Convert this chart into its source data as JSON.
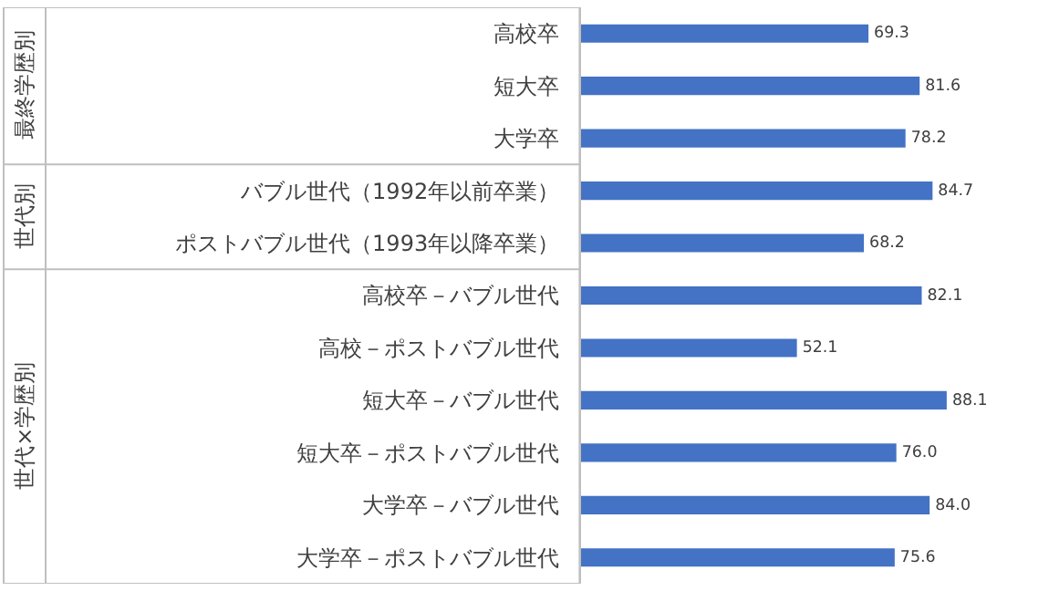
{
  "chart_data": {
    "type": "bar",
    "orientation": "horizontal",
    "categories": [
      "高校卒",
      "短大卒",
      "大学卒",
      "バブル世代（1992年以前卒業）",
      "ポストバブル世代（1993年以降卒業）",
      "高校卒－バブル世代",
      "高校－ポストバブル世代",
      "短大卒－バブル世代",
      "短大卒－ポストバブル世代",
      "大学卒－バブル世代",
      "大学卒－ポストバブル世代"
    ],
    "values": [
      69.3,
      81.6,
      78.2,
      84.7,
      68.2,
      82.1,
      52.1,
      88.1,
      76.0,
      84.0,
      75.6
    ],
    "value_labels": [
      "69.3",
      "81.6",
      "78.2",
      "84.7",
      "68.2",
      "82.1",
      "52.1",
      "88.1",
      "76.0",
      "84.0",
      "75.6"
    ],
    "color": "#4472c4",
    "annotations": [
      "最終学歴別",
      "世代別",
      "世代×学歴別"
    ],
    "legend": false
  }
}
